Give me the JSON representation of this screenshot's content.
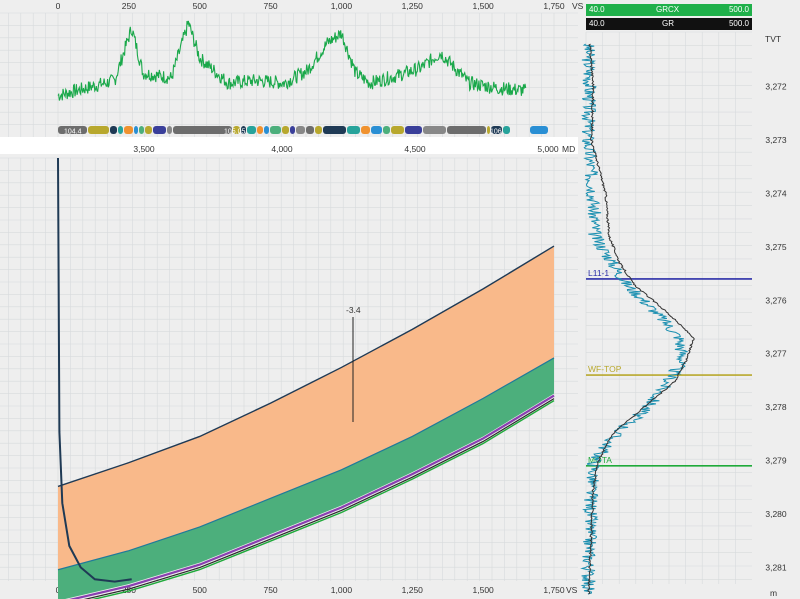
{
  "colors": {
    "background": "#eeeeee",
    "grid": "#cfd2d4",
    "grid_major": "#c4c7c9",
    "gr_curve": "#1aa84a",
    "band_orange": "#f9b98a",
    "band_green": "#4caf7c",
    "wellbore": "#1f3a55",
    "purple": "#8a3fb0",
    "navy_line": "#2b2fa8",
    "olive_line": "#b8a82e",
    "green_line": "#1faa3a",
    "header_green": "#1fb04a",
    "header_black": "#111111"
  },
  "top_axis": {
    "ticks": [
      "0",
      "250",
      "500",
      "750",
      "1,000",
      "1,250",
      "1,500",
      "1,750"
    ],
    "unit": "VS"
  },
  "md_axis": {
    "ticks": [
      "3,500",
      "4,000",
      "4,500",
      "5,000"
    ],
    "unit": "MD"
  },
  "bottom_axis": {
    "ticks": [
      "0",
      "250",
      "500",
      "750",
      "1,000",
      "1,250",
      "1,500",
      "1,750"
    ],
    "unit": "VS"
  },
  "marker_label": "-3.4",
  "strip_labels": [
    "104.4",
    "105.05",
    "106"
  ],
  "log_header": {
    "row1": {
      "min": "40.0",
      "name": "GRCX",
      "max": "500.0"
    },
    "row2": {
      "min": "40.0",
      "name": "GR",
      "max": "500.0"
    }
  },
  "tvt_axis": {
    "title": "TVT",
    "unit": "m",
    "ticks": [
      "3,272",
      "3,273",
      "3,274",
      "3,275",
      "3,276",
      "3,277",
      "3,278",
      "3,279",
      "3,280",
      "3,281"
    ]
  },
  "formation_tops": [
    {
      "name": "L11-1",
      "color": "#2b2fa8",
      "tvt": 3275.6
    },
    {
      "name": "WF-TOP",
      "color": "#b8a82e",
      "tvt": 3277.4
    },
    {
      "name": "MOTA",
      "color": "#1faa3a",
      "tvt": 3279.1
    }
  ],
  "chart_data": [
    {
      "type": "line",
      "name": "GR along section (top panel)",
      "x_unit": "VS",
      "xlim": [
        0,
        1750
      ],
      "x": [
        0,
        100,
        200,
        260,
        300,
        400,
        460,
        500,
        600,
        700,
        800,
        880,
        950,
        1000,
        1050,
        1100,
        1200,
        1280,
        1350,
        1450,
        1550,
        1650
      ],
      "y": [
        45,
        60,
        75,
        180,
        90,
        80,
        190,
        120,
        70,
        75,
        70,
        95,
        150,
        170,
        90,
        70,
        85,
        100,
        130,
        70,
        60,
        55
      ]
    },
    {
      "type": "area",
      "name": "Cross-section formation bands",
      "x_unit": "VS",
      "xlim": [
        0,
        1750
      ],
      "x": [
        0,
        250,
        500,
        750,
        1000,
        1250,
        1500,
        1750
      ],
      "series": [
        {
          "name": "band top",
          "values": [
            3272.1,
            3271.1,
            3270.0,
            3268.6,
            3267.1,
            3265.5,
            3263.8,
            3262.0
          ]
        },
        {
          "name": "green top",
          "values": [
            3275.6,
            3274.8,
            3273.8,
            3272.6,
            3271.4,
            3270.0,
            3268.4,
            3266.7
          ]
        },
        {
          "name": "green base",
          "values": [
            3276.9,
            3276.2,
            3275.3,
            3274.1,
            3272.9,
            3271.5,
            3270.0,
            3268.2
          ]
        }
      ],
      "wellbore": {
        "x": [
          0,
          5,
          15,
          40,
          80,
          130,
          200,
          260
        ],
        "y": [
          3258.3,
          3269.8,
          3272.8,
          3274.6,
          3275.5,
          3276.0,
          3276.1,
          3276.0
        ]
      }
    },
    {
      "type": "line",
      "name": "Log track (TVT)",
      "ylabel": "TVT",
      "ylim": [
        3271.2,
        3281.5
      ],
      "tvt": [
        3271.2,
        3272.0,
        3273.0,
        3274.0,
        3274.8,
        3275.3,
        3275.7,
        3276.2,
        3276.7,
        3277.1,
        3277.5,
        3278.0,
        3278.5,
        3279.0,
        3279.5,
        3280.5,
        3281.5
      ],
      "series": [
        {
          "name": "GRCX",
          "values": [
            40,
            45,
            40,
            55,
            60,
            110,
            150,
            230,
            300,
            310,
            270,
            210,
            120,
            60,
            50,
            45,
            40
          ]
        },
        {
          "name": "GR",
          "values": [
            45,
            55,
            50,
            90,
            100,
            130,
            170,
            260,
            340,
            320,
            290,
            200,
            110,
            70,
            55,
            48,
            42
          ]
        }
      ]
    }
  ]
}
